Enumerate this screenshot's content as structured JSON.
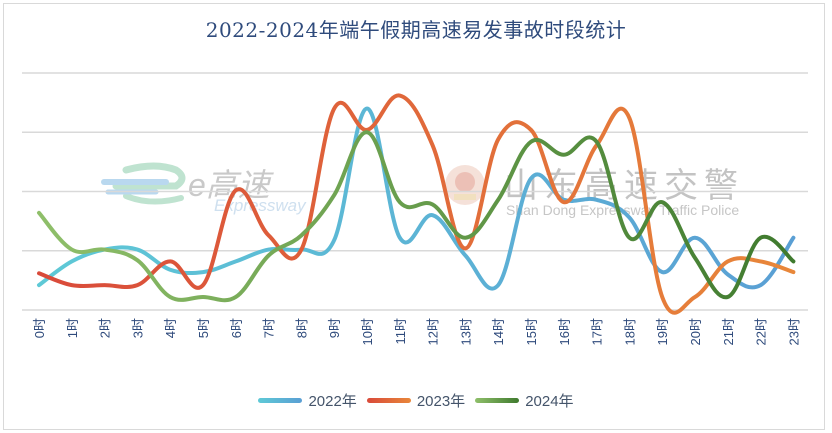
{
  "chart_data": {
    "type": "line",
    "title": "2022-2024年端午假期高速易发事故时段统计",
    "xlabel": "",
    "ylabel": "",
    "categories": [
      "0时",
      "1时",
      "2时",
      "3时",
      "4时",
      "5时",
      "6时",
      "7时",
      "8时",
      "9时",
      "10时",
      "11时",
      "12时",
      "13时",
      "14时",
      "15时",
      "16时",
      "17时",
      "18时",
      "19时",
      "20时",
      "21时",
      "22时",
      "23时"
    ],
    "ylim": [
      0,
      20
    ],
    "y_ticks_visible": false,
    "grid": true,
    "gridlines": [
      0,
      5,
      10,
      15,
      20
    ],
    "smooth": true,
    "legend_position": "bottom",
    "series": [
      {
        "name": "2022年",
        "color_start": "#5ec9d6",
        "color_end": "#5a9fd4",
        "values": [
          2.1,
          4.1,
          5.1,
          5.1,
          3.4,
          3.2,
          4.1,
          5.1,
          5.1,
          5.9,
          17.0,
          6.1,
          8.0,
          4.6,
          2.1,
          11.1,
          9.3,
          9.3,
          7.8,
          3.2,
          6.1,
          3.0,
          2.1,
          6.1
        ]
      },
      {
        "name": "2023年",
        "color_start": "#d94a3a",
        "color_end": "#e8873a",
        "values": [
          3.1,
          2.1,
          2.1,
          2.1,
          4.1,
          2.1,
          10.1,
          6.3,
          5.1,
          17.0,
          15.2,
          18.1,
          13.9,
          5.2,
          14.4,
          15.2,
          9.1,
          13.9,
          16.2,
          1.1,
          1.1,
          4.1,
          4.1,
          3.2
        ]
      },
      {
        "name": "2024年",
        "color_start": "#8fbf6a",
        "color_end": "#3f7a2e",
        "values": [
          8.2,
          5.1,
          5.1,
          4.2,
          1.1,
          1.1,
          1.1,
          4.6,
          6.3,
          9.7,
          15.0,
          9.1,
          8.9,
          6.1,
          9.3,
          14.2,
          13.1,
          14.2,
          6.1,
          9.1,
          4.4,
          1.1,
          6.1,
          4.1
        ]
      }
    ]
  },
  "title": "2022-2024年端午假期高速易发事故时段统计",
  "legend": [
    {
      "label": "2022年"
    },
    {
      "label": "2023年"
    },
    {
      "label": "2024年"
    }
  ],
  "watermarks": {
    "left_cn": "e高速",
    "left_en": "Expressway",
    "right_cn": "山东高速交警",
    "right_en": "Shan Dong Expressway Traffic Police"
  }
}
